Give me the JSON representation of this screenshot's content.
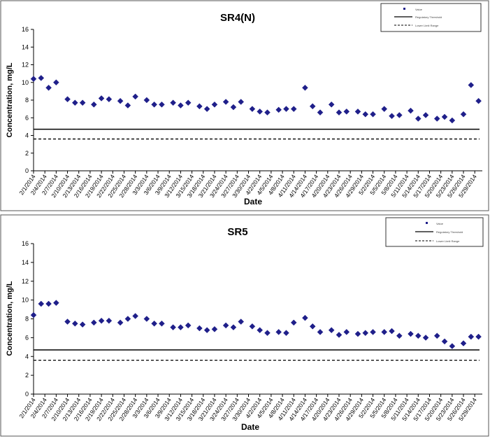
{
  "charts": [
    {
      "title": "SR4(N)",
      "xlabel": "Date",
      "ylabel": "Concentration, mg/L",
      "legend": [
        "Value",
        "Regulatory Threshold",
        "Lower Limit Range"
      ]
    },
    {
      "title": "SR5",
      "xlabel": "Date",
      "ylabel": "Concentration, mg/L",
      "legend": [
        "Value",
        "Regulatory Threshold",
        "Lower Limit Range"
      ]
    }
  ],
  "chart_data": [
    {
      "type": "scatter",
      "title": "SR4(N)",
      "xlabel": "Date",
      "ylabel": "Concentration, mg/L",
      "ylim": [
        0,
        16
      ],
      "yticks": [
        0,
        2,
        4,
        6,
        8,
        10,
        12,
        14,
        16
      ],
      "xlim": [
        "2/1/2014",
        "5/31/2014"
      ],
      "xtick_labels": [
        "2/1/2014",
        "2/4/2014",
        "2/7/2014",
        "2/10/2014",
        "2/13/2014",
        "2/16/2014",
        "2/19/2014",
        "2/22/2014",
        "2/25/2014",
        "2/28/2014",
        "3/3/2014",
        "3/6/2014",
        "3/9/2014",
        "3/12/2014",
        "3/15/2014",
        "3/18/2014",
        "3/21/2014",
        "3/24/2014",
        "3/27/2014",
        "3/30/2014",
        "4/2/2014",
        "4/5/2014",
        "4/8/2014",
        "4/11/2014",
        "4/14/2014",
        "4/17/2014",
        "4/20/2014",
        "4/23/2014",
        "4/26/2014",
        "4/29/2014",
        "5/2/2014",
        "5/5/2014",
        "5/8/2014",
        "5/11/2014",
        "5/14/2014",
        "5/17/2014",
        "5/20/2014",
        "5/23/2014",
        "5/26/2014",
        "5/29/2014"
      ],
      "grid": false,
      "legend_position": "top-right",
      "marker_color": "#1f1f8a",
      "series": [
        {
          "x": [
            "2/1/2014",
            "2/3/2014",
            "2/5/2014",
            "2/7/2014",
            "2/10/2014",
            "2/12/2014",
            "2/14/2014",
            "2/17/2014",
            "2/19/2014",
            "2/21/2014",
            "2/24/2014",
            "2/26/2014",
            "2/28/2014",
            "3/3/2014",
            "3/5/2014",
            "3/7/2014",
            "3/10/2014",
            "3/12/2014",
            "3/14/2014",
            "3/17/2014",
            "3/19/2014",
            "3/21/2014",
            "3/24/2014",
            "3/26/2014",
            "3/28/2014",
            "3/31/2014",
            "4/2/2014",
            "4/4/2014",
            "4/7/2014",
            "4/9/2014",
            "4/11/2014",
            "4/14/2014",
            "4/16/2014",
            "4/18/2014",
            "4/21/2014",
            "4/23/2014",
            "4/25/2014",
            "4/28/2014",
            "4/30/2014",
            "5/2/2014",
            "5/5/2014",
            "5/7/2014",
            "5/9/2014",
            "5/12/2014",
            "5/14/2014",
            "5/16/2014",
            "5/19/2014",
            "5/21/2014",
            "5/23/2014",
            "5/26/2014",
            "5/28/2014",
            "5/30/2014"
          ],
          "y": [
            10.4,
            10.5,
            9.4,
            10.0,
            8.1,
            7.7,
            7.7,
            7.5,
            8.2,
            8.1,
            7.9,
            7.4,
            8.4,
            8.0,
            7.5,
            7.5,
            7.7,
            7.4,
            7.7,
            7.3,
            7.0,
            7.5,
            7.8,
            7.2,
            7.8,
            7.0,
            6.7,
            6.6,
            6.9,
            7.0,
            7.0,
            9.4,
            7.3,
            6.6,
            7.5,
            6.6,
            6.7,
            6.7,
            6.4,
            6.4,
            7.0,
            6.2,
            6.3,
            6.8,
            5.9,
            6.3,
            5.9,
            6.1,
            5.7,
            6.4,
            9.7,
            7.9
          ]
        },
        {
          "y_constant": 4.7
        },
        {
          "y_constant": 3.6
        }
      ]
    },
    {
      "type": "scatter",
      "title": "SR5",
      "xlabel": "Date",
      "ylabel": "Concentration, mg/L",
      "ylim": [
        0,
        16
      ],
      "yticks": [
        0,
        2,
        4,
        6,
        8,
        10,
        12,
        14,
        16
      ],
      "xlim": [
        "2/1/2014",
        "5/31/2014"
      ],
      "xtick_labels": [
        "2/1/2014",
        "2/4/2014",
        "2/7/2014",
        "2/10/2014",
        "2/13/2014",
        "2/16/2014",
        "2/19/2014",
        "2/22/2014",
        "2/25/2014",
        "2/28/2014",
        "3/3/2014",
        "3/6/2014",
        "3/9/2014",
        "3/12/2014",
        "3/15/2014",
        "3/18/2014",
        "3/21/2014",
        "3/24/2014",
        "3/27/2014",
        "3/30/2014",
        "4/2/2014",
        "4/5/2014",
        "4/8/2014",
        "4/11/2014",
        "4/14/2014",
        "4/17/2014",
        "4/20/2014",
        "4/23/2014",
        "4/26/2014",
        "4/29/2014",
        "5/2/2014",
        "5/5/2014",
        "5/8/2014",
        "5/11/2014",
        "5/14/2014",
        "5/17/2014",
        "5/20/2014",
        "5/23/2014",
        "5/26/2014",
        "5/29/2014"
      ],
      "grid": false,
      "legend_position": "top-right",
      "marker_color": "#1f1f8a",
      "series": [
        {
          "x": [
            "2/1/2014",
            "2/3/2014",
            "2/5/2014",
            "2/7/2014",
            "2/10/2014",
            "2/12/2014",
            "2/14/2014",
            "2/17/2014",
            "2/19/2014",
            "2/21/2014",
            "2/24/2014",
            "2/26/2014",
            "2/28/2014",
            "3/3/2014",
            "3/5/2014",
            "3/7/2014",
            "3/10/2014",
            "3/12/2014",
            "3/14/2014",
            "3/17/2014",
            "3/19/2014",
            "3/21/2014",
            "3/24/2014",
            "3/26/2014",
            "3/28/2014",
            "3/31/2014",
            "4/2/2014",
            "4/4/2014",
            "4/7/2014",
            "4/9/2014",
            "4/11/2014",
            "4/14/2014",
            "4/16/2014",
            "4/18/2014",
            "4/21/2014",
            "4/23/2014",
            "4/25/2014",
            "4/28/2014",
            "4/30/2014",
            "5/2/2014",
            "5/5/2014",
            "5/7/2014",
            "5/9/2014",
            "5/12/2014",
            "5/14/2014",
            "5/16/2014",
            "5/19/2014",
            "5/21/2014",
            "5/23/2014",
            "5/26/2014",
            "5/28/2014",
            "5/30/2014"
          ],
          "y": [
            8.4,
            9.6,
            9.6,
            9.7,
            7.7,
            7.5,
            7.4,
            7.6,
            7.8,
            7.8,
            7.6,
            8.0,
            8.3,
            8.0,
            7.5,
            7.5,
            7.1,
            7.1,
            7.3,
            7.0,
            6.8,
            6.9,
            7.3,
            7.1,
            7.7,
            7.2,
            6.8,
            6.5,
            6.6,
            6.5,
            7.6,
            8.1,
            7.2,
            6.6,
            6.8,
            6.3,
            6.6,
            6.4,
            6.5,
            6.6,
            6.6,
            6.7,
            6.2,
            6.4,
            6.2,
            6.0,
            6.2,
            5.6,
            5.1,
            5.4,
            6.1,
            6.1
          ]
        },
        {
          "y_constant": 4.7
        },
        {
          "y_constant": 3.6
        }
      ]
    }
  ]
}
